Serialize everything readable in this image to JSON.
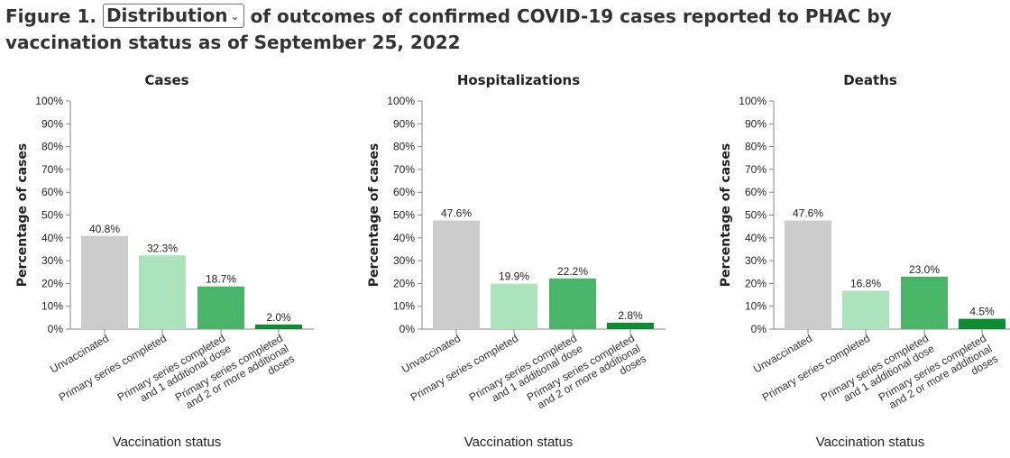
{
  "figure": {
    "prefix": "Figure 1.",
    "dropdown_selected": "Distribution",
    "suffix": "of outcomes of confirmed COVID-19 cases reported to PHAC by vaccination status as of September 25, 2022",
    "chevron_icon": "chevron-down-icon"
  },
  "chart_data": [
    {
      "type": "bar",
      "title": "Cases",
      "xlabel": "Vaccination status",
      "ylabel": "Percentage of cases",
      "ylim": [
        0,
        100
      ],
      "y_ticks": [
        "0%",
        "10%",
        "20%",
        "30%",
        "40%",
        "50%",
        "60%",
        "70%",
        "80%",
        "90%",
        "100%"
      ],
      "categories": [
        [
          "Unvaccinated"
        ],
        [
          "Primary series completed"
        ],
        [
          "Primary series completed",
          "and 1 additional dose"
        ],
        [
          "Primary series completed",
          "and 2 or more additional",
          "doses"
        ]
      ],
      "values": [
        40.8,
        32.3,
        18.7,
        2.0
      ],
      "data_labels": [
        "40.8%",
        "32.3%",
        "18.7%",
        "2.0%"
      ],
      "colors": [
        "#cccccc",
        "#abe3bd",
        "#48b569",
        "#0c8c33"
      ],
      "grid": false
    },
    {
      "type": "bar",
      "title": "Hospitalizations",
      "xlabel": "Vaccination status",
      "ylabel": "Percentage of cases",
      "ylim": [
        0,
        100
      ],
      "y_ticks": [
        "0%",
        "10%",
        "20%",
        "30%",
        "40%",
        "50%",
        "60%",
        "70%",
        "80%",
        "90%",
        "100%"
      ],
      "categories": [
        [
          "Unvaccinated"
        ],
        [
          "Primary series completed"
        ],
        [
          "Primary series completed",
          "and 1 additional dose"
        ],
        [
          "Primary series completed",
          "and 2 or more additional",
          "doses"
        ]
      ],
      "values": [
        47.6,
        19.9,
        22.2,
        2.8
      ],
      "data_labels": [
        "47.6%",
        "19.9%",
        "22.2%",
        "2.8%"
      ],
      "colors": [
        "#cccccc",
        "#abe3bd",
        "#48b569",
        "#0c8c33"
      ],
      "grid": false
    },
    {
      "type": "bar",
      "title": "Deaths",
      "xlabel": "Vaccination status",
      "ylabel": "Percentage of cases",
      "ylim": [
        0,
        100
      ],
      "y_ticks": [
        "0%",
        "10%",
        "20%",
        "30%",
        "40%",
        "50%",
        "60%",
        "70%",
        "80%",
        "90%",
        "100%"
      ],
      "categories": [
        [
          "Unvaccinated"
        ],
        [
          "Primary series completed"
        ],
        [
          "Primary series completed",
          "and 1 additional dose"
        ],
        [
          "Primary series completed",
          "and 2 or more additional",
          "doses"
        ]
      ],
      "values": [
        47.6,
        16.8,
        23.0,
        4.5
      ],
      "data_labels": [
        "47.6%",
        "16.8%",
        "23.0%",
        "4.5%"
      ],
      "colors": [
        "#cccccc",
        "#abe3bd",
        "#48b569",
        "#0c8c33"
      ],
      "grid": false
    }
  ]
}
